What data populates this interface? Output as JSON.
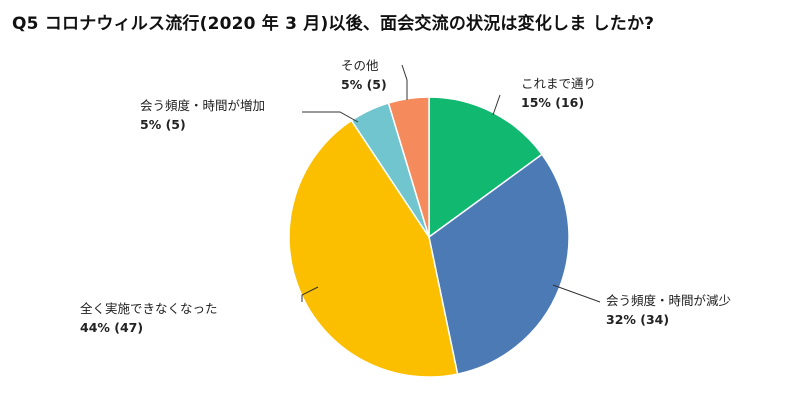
{
  "chart_data": {
    "type": "pie",
    "title": "Q5 コロナウィルス流行(2020 年 3 月)以後、面会交流の状況は変化しま したか?",
    "slices": [
      {
        "label": "これまで通り",
        "percent_label": "15% (16)",
        "value": 16,
        "color": "#10B870"
      },
      {
        "label": "会う頻度・時間が減少",
        "percent_label": "32% (34)",
        "value": 34,
        "color": "#4C7AB5"
      },
      {
        "label": "全く実施できなくなった",
        "percent_label": "44% (47)",
        "value": 47,
        "color": "#FBBF00"
      },
      {
        "label": "会う頻度・時間が増加",
        "percent_label": "5% (5)",
        "value": 5,
        "color": "#71C5CE"
      },
      {
        "label": "その他",
        "percent_label": "5% (5)",
        "value": 5,
        "color": "#F58A5C"
      }
    ],
    "start_angle": "12 o'clock",
    "direction": "clockwise",
    "legend": "none"
  }
}
